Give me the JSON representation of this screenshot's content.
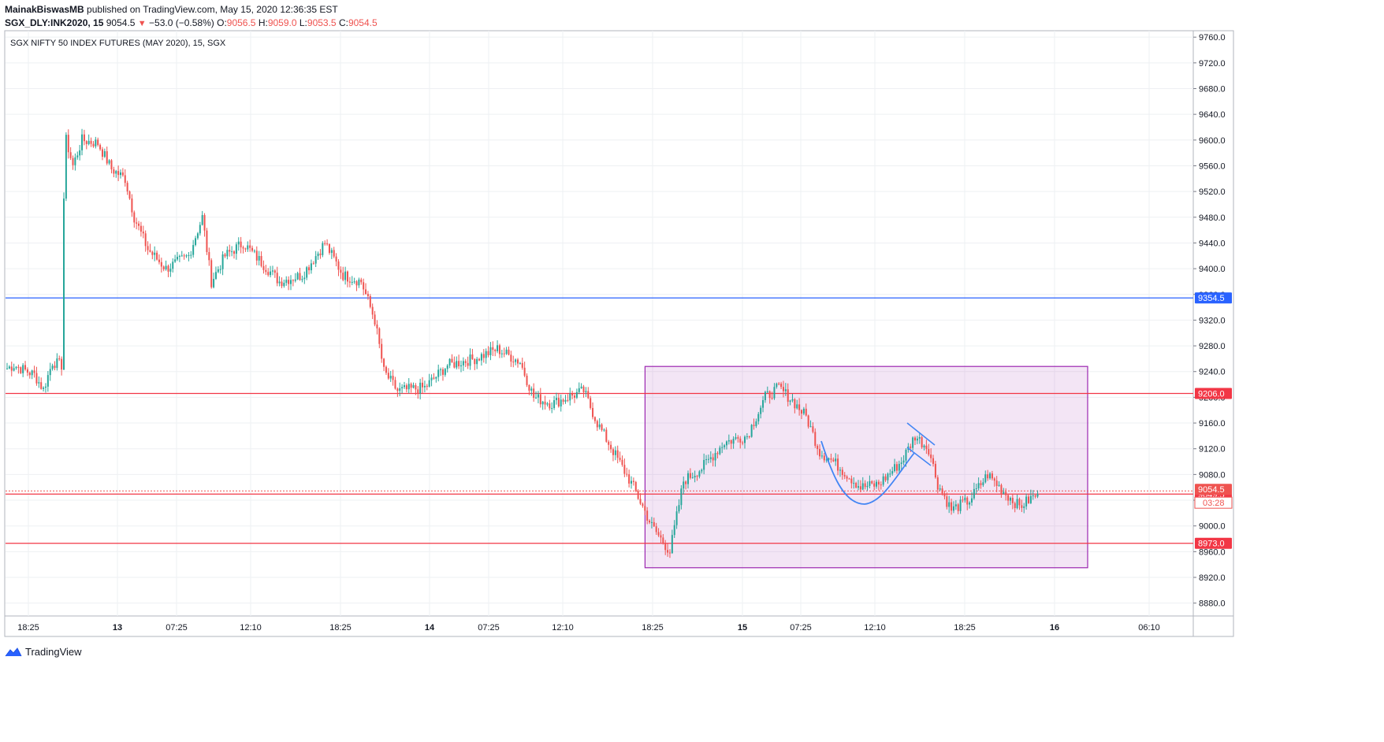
{
  "header": {
    "publisher": "MainakBiswasMB",
    "published_text": "published on TradingView.com, May 15, 2020 12:36:35 EST",
    "symbol": "SGX_DLY:INK2020, 15",
    "last": "9054.5",
    "change": "−53.0 (−0.58%)",
    "o_label": "O:",
    "o_val": "9056.5",
    "h_label": "H:",
    "h_val": "9059.0",
    "l_label": "L:",
    "l_val": "9053.5",
    "c_label": "C:",
    "c_val": "9054.5"
  },
  "footer": {
    "brand": "TradingView"
  },
  "chart_data": {
    "type": "candlestick",
    "title": "SGX NIFTY 50 INDEX FUTURES (MAY 2020), 15, SGX",
    "ylim": [
      8860,
      9770
    ],
    "y_ticks": [
      9760,
      9720,
      9680,
      9640,
      9600,
      9560,
      9520,
      9480,
      9440,
      9400,
      9360,
      9320,
      9280,
      9240,
      9200,
      9160,
      9120,
      9080,
      9040,
      9000,
      8960,
      8920,
      8880
    ],
    "x_ticks": [
      "18:25",
      "13",
      "07:25",
      "12:10",
      "18:25",
      "14",
      "07:25",
      "12:10",
      "18:25",
      "15",
      "07:25",
      "12:10",
      "18:25",
      "16",
      "06:10"
    ],
    "x_tick_bold": [
      false,
      true,
      false,
      false,
      false,
      true,
      false,
      false,
      false,
      true,
      false,
      false,
      false,
      true,
      false
    ],
    "levels": [
      {
        "value": 9354.5,
        "label": "9354.5",
        "color": "#2962ff"
      },
      {
        "value": 9206.0,
        "label": "9206.0",
        "color": "#f23645"
      },
      {
        "value": 9049.5,
        "label": "9049.5",
        "color": "#f23645"
      },
      {
        "value": 8973.0,
        "label": "8973.0",
        "color": "#f23645"
      }
    ],
    "last_price": {
      "value": 9054.5,
      "label": "9054.5",
      "countdown": "03:28",
      "color": "#ef5350"
    },
    "box": {
      "from_bar": 280,
      "to_bar": 475,
      "y_top": 9248,
      "y_bottom": 8935,
      "color": "#9c27b0"
    },
    "total_bars": 520,
    "waypoints": [
      [
        0,
        9245
      ],
      [
        3,
        9250
      ],
      [
        12,
        9235
      ],
      [
        16,
        9212
      ],
      [
        20,
        9255
      ],
      [
        24,
        9250
      ],
      [
        25,
        9510
      ],
      [
        26,
        9600
      ],
      [
        29,
        9560
      ],
      [
        33,
        9600
      ],
      [
        40,
        9595
      ],
      [
        46,
        9555
      ],
      [
        52,
        9540
      ],
      [
        56,
        9480
      ],
      [
        62,
        9430
      ],
      [
        70,
        9400
      ],
      [
        80,
        9420
      ],
      [
        86,
        9480
      ],
      [
        90,
        9380
      ],
      [
        96,
        9420
      ],
      [
        104,
        9440
      ],
      [
        112,
        9410
      ],
      [
        120,
        9380
      ],
      [
        130,
        9390
      ],
      [
        140,
        9440
      ],
      [
        148,
        9390
      ],
      [
        156,
        9380
      ],
      [
        162,
        9320
      ],
      [
        166,
        9240
      ],
      [
        172,
        9210
      ],
      [
        184,
        9215
      ],
      [
        194,
        9250
      ],
      [
        206,
        9260
      ],
      [
        216,
        9275
      ],
      [
        226,
        9255
      ],
      [
        232,
        9200
      ],
      [
        240,
        9190
      ],
      [
        254,
        9210
      ],
      [
        260,
        9160
      ],
      [
        268,
        9110
      ],
      [
        276,
        9060
      ],
      [
        284,
        9000
      ],
      [
        292,
        8960
      ],
      [
        298,
        9070
      ],
      [
        306,
        9090
      ],
      [
        316,
        9130
      ],
      [
        326,
        9140
      ],
      [
        334,
        9200
      ],
      [
        340,
        9215
      ],
      [
        346,
        9195
      ],
      [
        352,
        9170
      ],
      [
        358,
        9115
      ],
      [
        364,
        9100
      ],
      [
        376,
        9060
      ],
      [
        384,
        9065
      ],
      [
        394,
        9100
      ],
      [
        400,
        9140
      ],
      [
        406,
        9120
      ],
      [
        410,
        9065
      ],
      [
        416,
        9025
      ],
      [
        424,
        9040
      ],
      [
        432,
        9080
      ],
      [
        440,
        9050
      ],
      [
        446,
        9030
      ],
      [
        454,
        9050
      ]
    ],
    "annotations": [
      {
        "type": "arc",
        "color": "#4285f4"
      },
      {
        "type": "flag-upper",
        "color": "#4285f4"
      },
      {
        "type": "flag-lower",
        "color": "#4285f4"
      }
    ]
  }
}
